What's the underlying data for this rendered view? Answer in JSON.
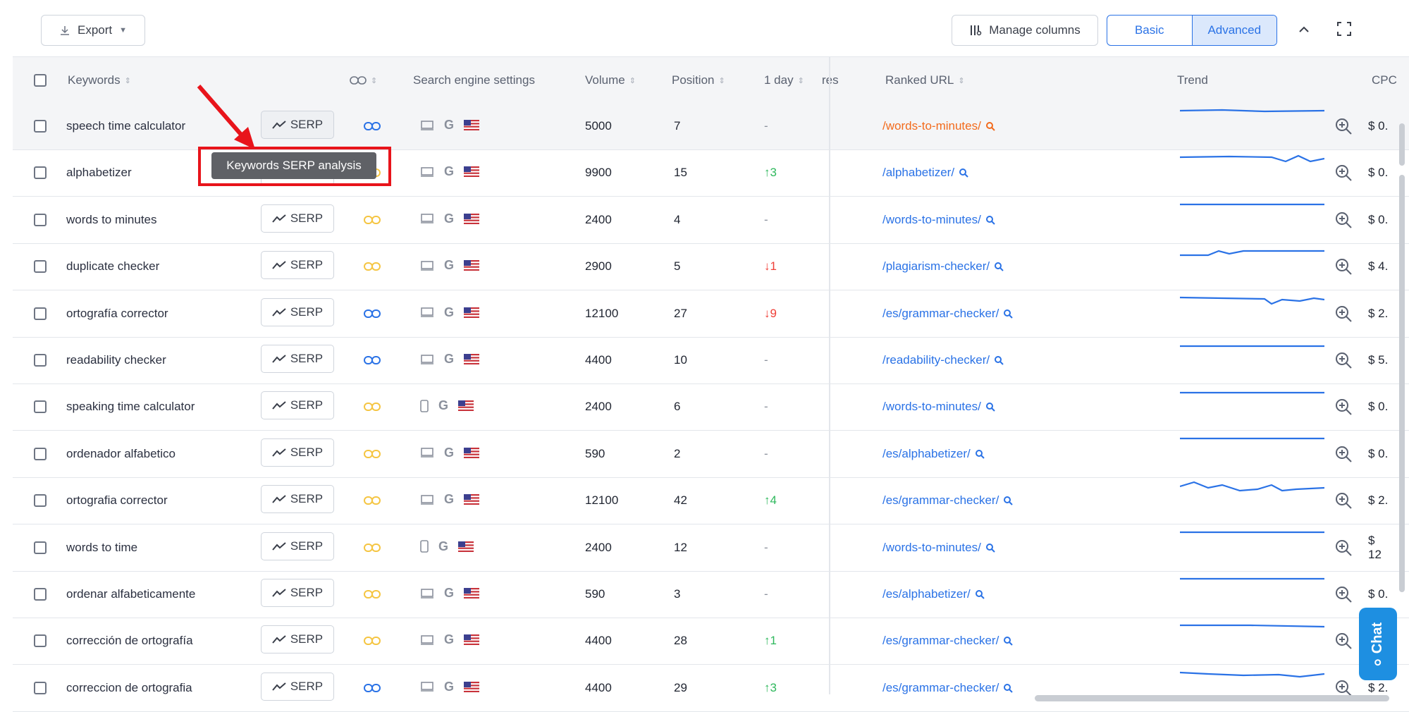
{
  "toolbar": {
    "export_label": "Export",
    "manage_columns_label": "Manage columns",
    "view_basic_label": "Basic",
    "view_advanced_label": "Advanced",
    "active_view": "Advanced"
  },
  "table": {
    "headers": {
      "keywords": "Keywords",
      "search_engine_settings": "Search engine settings",
      "volume": "Volume",
      "position": "Position",
      "one_day": "1 day",
      "ghost_partial": "res",
      "ranked_url": "Ranked URL",
      "trend": "Trend",
      "cpc": "CPC"
    },
    "serp_label": "SERP",
    "rows": [
      {
        "keyword": "speech time calculator",
        "volume": "5000",
        "position": "7",
        "change": "-",
        "url": "/words-to-minutes/",
        "cpc": "$ 0.",
        "device": "desktop"
      },
      {
        "keyword": "alphabetizer",
        "volume": "9900",
        "position": "15",
        "change": "↑3",
        "url": "/alphabetizer/",
        "cpc": "$ 0.",
        "device": "desktop"
      },
      {
        "keyword": "words to minutes",
        "volume": "2400",
        "position": "4",
        "change": "-",
        "url": "/words-to-minutes/",
        "cpc": "$ 0.",
        "device": "desktop"
      },
      {
        "keyword": "duplicate checker",
        "volume": "2900",
        "position": "5",
        "change": "↓1",
        "url": "/plagiarism-checker/",
        "cpc": "$ 4.",
        "device": "desktop"
      },
      {
        "keyword": "ortografía corrector",
        "volume": "12100",
        "position": "27",
        "change": "↓9",
        "url": "/es/grammar-checker/",
        "cpc": "$ 2.",
        "device": "desktop"
      },
      {
        "keyword": "readability checker",
        "volume": "4400",
        "position": "10",
        "change": "-",
        "url": "/readability-checker/",
        "cpc": "$ 5.",
        "device": "desktop"
      },
      {
        "keyword": "speaking time calculator",
        "volume": "2400",
        "position": "6",
        "change": "-",
        "url": "/words-to-minutes/",
        "cpc": "$ 0.",
        "device": "mobile"
      },
      {
        "keyword": "ordenador alfabetico",
        "volume": "590",
        "position": "2",
        "change": "-",
        "url": "/es/alphabetizer/",
        "cpc": "$ 0.",
        "device": "desktop"
      },
      {
        "keyword": "ortografia corrector",
        "volume": "12100",
        "position": "42",
        "change": "↑4",
        "url": "/es/grammar-checker/",
        "cpc": "$ 2.",
        "device": "desktop"
      },
      {
        "keyword": "words to time",
        "volume": "2400",
        "position": "12",
        "change": "-",
        "url": "/words-to-minutes/",
        "cpc": "$ 12",
        "device": "mobile"
      },
      {
        "keyword": "ordenar alfabeticamente",
        "volume": "590",
        "position": "3",
        "change": "-",
        "url": "/es/alphabetizer/",
        "cpc": "$ 0.",
        "device": "desktop"
      },
      {
        "keyword": "corrección de ortografía",
        "volume": "4400",
        "position": "28",
        "change": "↑1",
        "url": "/es/grammar-checker/",
        "cpc": "$ 2.",
        "device": "desktop"
      },
      {
        "keyword": "correccion de ortografia",
        "volume": "4400",
        "position": "29",
        "change": "↑3",
        "url": "/es/grammar-checker/",
        "cpc": "$ 2.",
        "device": "desktop"
      }
    ]
  },
  "tooltip": {
    "text": "Keywords SERP analysis"
  },
  "chat": {
    "label": "Chat"
  },
  "colors": {
    "accent": "#2a72e6",
    "up": "#2eb85c",
    "down": "#ef3e36",
    "highlight": "#e8141b",
    "hover_url": "#f26b1d",
    "linkicon_blue": "#2a72e6",
    "linkicon_yellow": "#f5c542"
  },
  "icons": {
    "export": "download-icon",
    "manage": "columns-icon",
    "collapse": "chevron-up-icon",
    "fullscreen": "fullscreen-icon",
    "serp": "trend-line-icon",
    "link": "link-icon",
    "desktop": "desktop-icon",
    "mobile": "mobile-icon",
    "engine": "google-icon",
    "country": "us-flag-icon",
    "zoom": "zoom-in-icon",
    "search": "search-icon"
  }
}
